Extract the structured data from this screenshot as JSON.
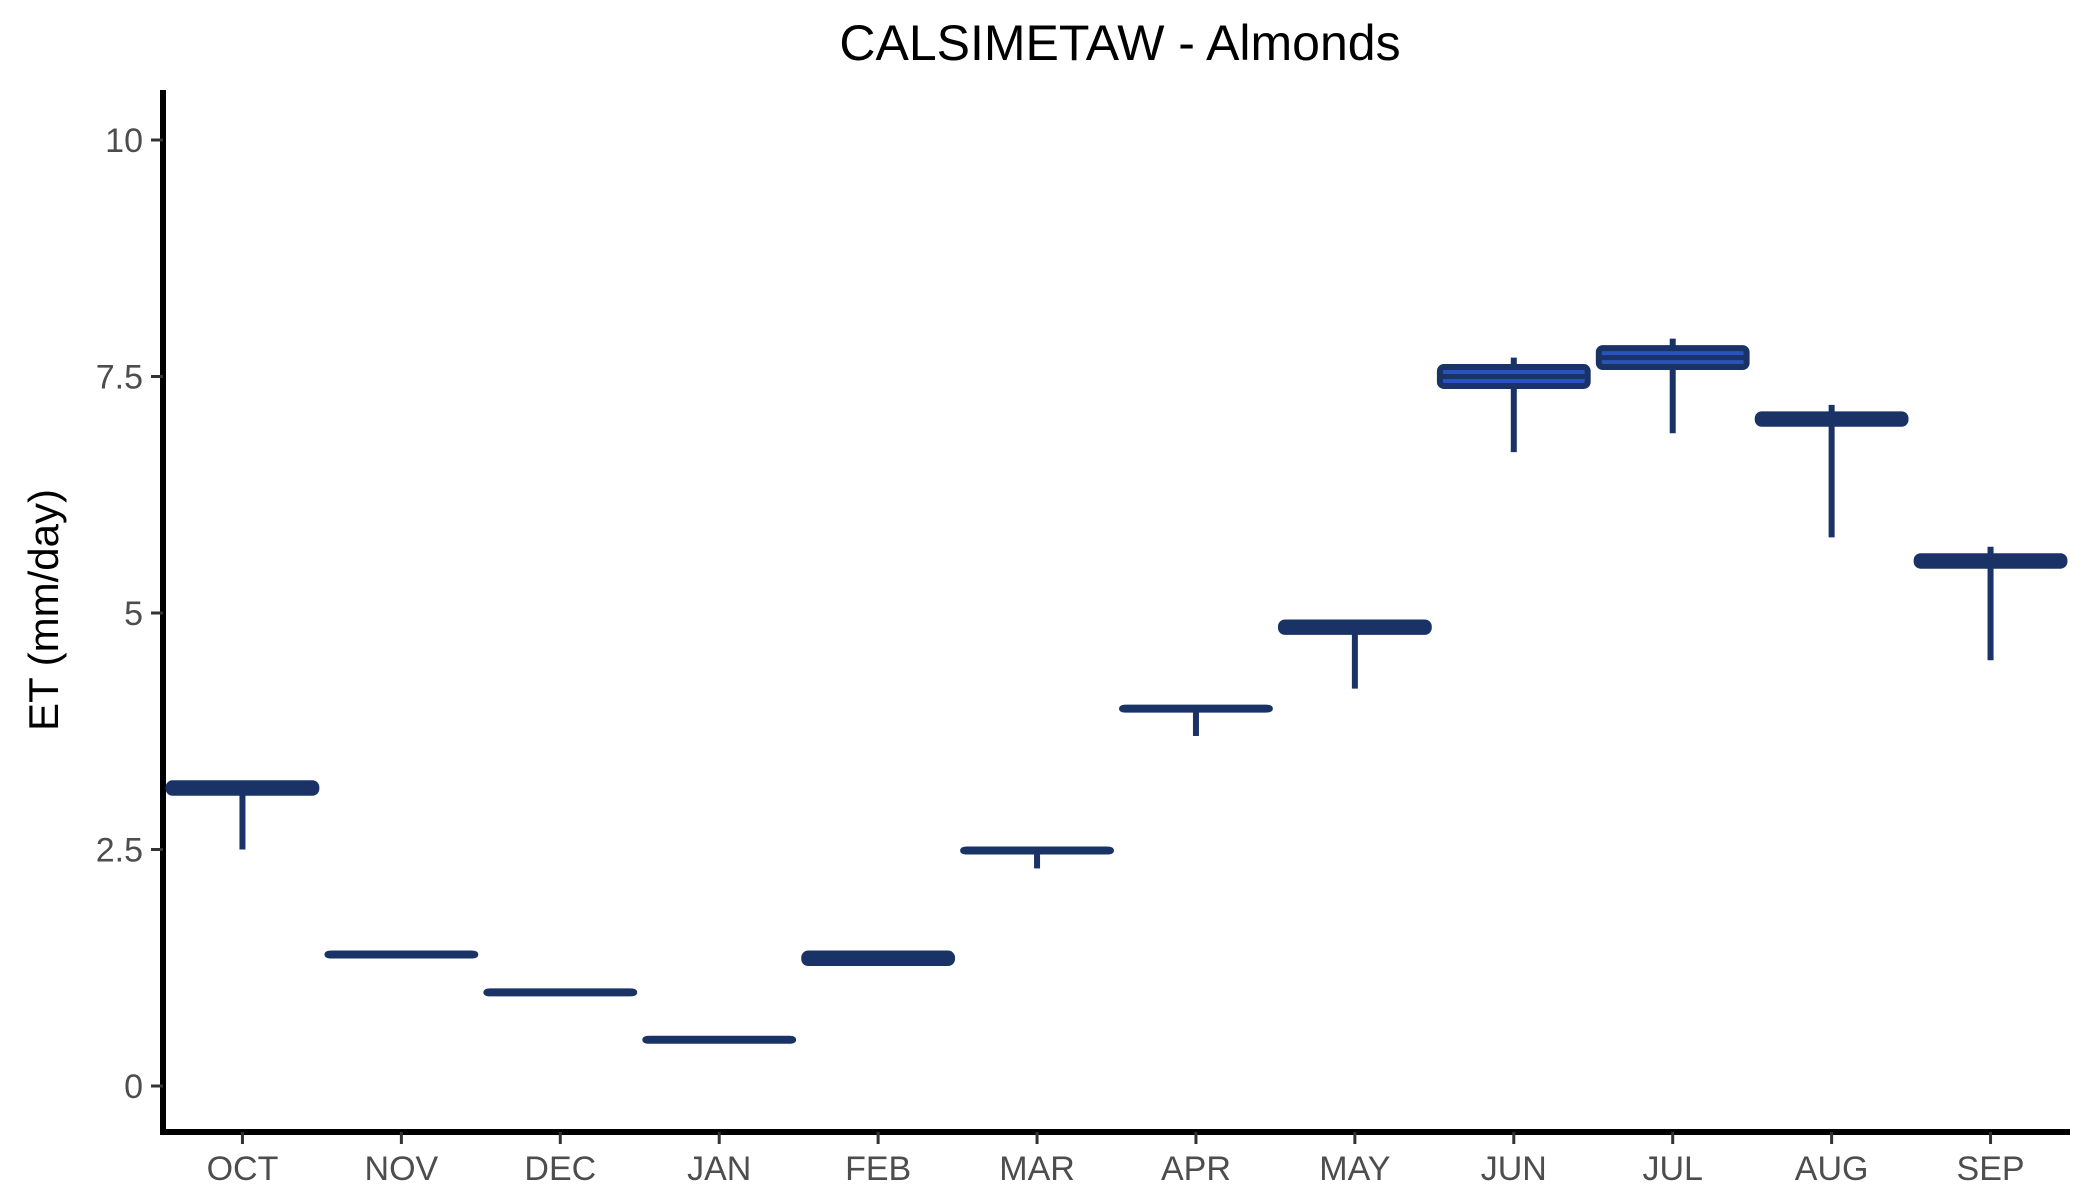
{
  "chart_data": {
    "type": "boxplot",
    "title": "CALSIMETAW - Almonds",
    "xlabel": "",
    "ylabel": "ET (mm/day)",
    "ylim": [
      -0.5,
      10.5
    ],
    "yticks": [
      0,
      2.5,
      5,
      7.5,
      10
    ],
    "ytick_labels": [
      "0",
      "2.5",
      "5",
      "7.5",
      "10"
    ],
    "grid": false,
    "legend": "none",
    "colors": {
      "box_fill": "#2a52be",
      "box_outline": "#1a3366",
      "median": "#1a3366",
      "whisker": "#1a3366",
      "axis": "#000000"
    },
    "categories": [
      "OCT",
      "NOV",
      "DEC",
      "JAN",
      "FEB",
      "MAR",
      "APR",
      "MAY",
      "JUN",
      "JUL",
      "AUG",
      "SEP"
    ],
    "boxes": [
      {
        "category": "OCT",
        "min": 2.5,
        "q1": 3.1,
        "median": 3.15,
        "q3": 3.2,
        "max": 3.2
      },
      {
        "category": "NOV",
        "min": 1.4,
        "q1": 1.4,
        "median": 1.4,
        "q3": 1.4,
        "max": 1.4
      },
      {
        "category": "DEC",
        "min": 1.0,
        "q1": 1.0,
        "median": 1.0,
        "q3": 1.0,
        "max": 1.0
      },
      {
        "category": "JAN",
        "min": 0.5,
        "q1": 0.5,
        "median": 0.5,
        "q3": 0.5,
        "max": 0.5
      },
      {
        "category": "FEB",
        "min": 1.3,
        "q1": 1.3,
        "median": 1.35,
        "q3": 1.4,
        "max": 1.4
      },
      {
        "category": "MAR",
        "min": 2.3,
        "q1": 2.5,
        "median": 2.5,
        "q3": 2.5,
        "max": 2.5
      },
      {
        "category": "APR",
        "min": 3.7,
        "q1": 4.0,
        "median": 4.0,
        "q3": 4.0,
        "max": 4.0
      },
      {
        "category": "MAY",
        "min": 4.2,
        "q1": 4.8,
        "median": 4.85,
        "q3": 4.9,
        "max": 4.9
      },
      {
        "category": "JUN",
        "min": 6.7,
        "q1": 7.4,
        "median": 7.5,
        "q3": 7.6,
        "max": 7.7
      },
      {
        "category": "JUL",
        "min": 6.9,
        "q1": 7.6,
        "median": 7.7,
        "q3": 7.8,
        "max": 7.9
      },
      {
        "category": "AUG",
        "min": 5.8,
        "q1": 7.0,
        "median": 7.05,
        "q3": 7.1,
        "max": 7.2
      },
      {
        "category": "SEP",
        "min": 4.5,
        "q1": 5.5,
        "median": 5.55,
        "q3": 5.6,
        "max": 5.7
      }
    ]
  }
}
